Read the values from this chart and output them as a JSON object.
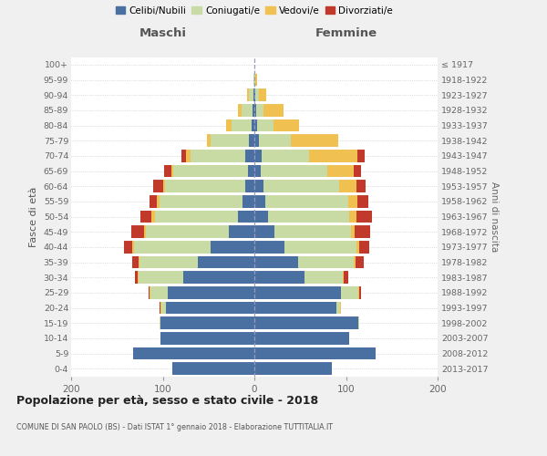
{
  "age_groups": [
    "0-4",
    "5-9",
    "10-14",
    "15-19",
    "20-24",
    "25-29",
    "30-34",
    "35-39",
    "40-44",
    "45-49",
    "50-54",
    "55-59",
    "60-64",
    "65-69",
    "70-74",
    "75-79",
    "80-84",
    "85-89",
    "90-94",
    "95-99",
    "100+"
  ],
  "birth_years": [
    "2013-2017",
    "2008-2012",
    "2003-2007",
    "1998-2002",
    "1993-1997",
    "1988-1992",
    "1983-1987",
    "1978-1982",
    "1973-1977",
    "1968-1972",
    "1963-1967",
    "1958-1962",
    "1953-1957",
    "1948-1952",
    "1943-1947",
    "1938-1942",
    "1933-1937",
    "1928-1932",
    "1923-1927",
    "1918-1922",
    "≤ 1917"
  ],
  "maschi": {
    "celibi": [
      90,
      132,
      102,
      102,
      97,
      95,
      78,
      62,
      48,
      28,
      18,
      13,
      10,
      7,
      10,
      6,
      3,
      2,
      1,
      0,
      0
    ],
    "coniugati": [
      0,
      0,
      0,
      1,
      4,
      18,
      48,
      63,
      83,
      90,
      90,
      90,
      88,
      82,
      60,
      42,
      22,
      12,
      5,
      1,
      0
    ],
    "vedovi": [
      0,
      0,
      0,
      0,
      1,
      1,
      1,
      1,
      2,
      2,
      4,
      3,
      2,
      2,
      5,
      4,
      6,
      4,
      2,
      0,
      0
    ],
    "divorziati": [
      0,
      0,
      0,
      0,
      1,
      1,
      3,
      7,
      9,
      14,
      12,
      8,
      10,
      8,
      5,
      0,
      0,
      0,
      0,
      0,
      0
    ]
  },
  "femmine": {
    "nubili": [
      85,
      132,
      103,
      113,
      90,
      95,
      55,
      48,
      33,
      22,
      15,
      12,
      10,
      7,
      8,
      5,
      3,
      2,
      1,
      0,
      0
    ],
    "coniugate": [
      0,
      0,
      0,
      1,
      4,
      18,
      42,
      60,
      78,
      83,
      88,
      90,
      83,
      73,
      52,
      35,
      18,
      8,
      4,
      1,
      0
    ],
    "vedove": [
      0,
      0,
      0,
      0,
      1,
      1,
      1,
      2,
      3,
      4,
      8,
      10,
      18,
      28,
      52,
      52,
      28,
      22,
      8,
      2,
      0
    ],
    "divorziate": [
      0,
      0,
      0,
      0,
      0,
      2,
      4,
      9,
      11,
      17,
      17,
      12,
      10,
      8,
      8,
      0,
      0,
      0,
      0,
      0,
      0
    ]
  },
  "colors": {
    "celibi": "#4a6fa1",
    "coniugati": "#c8dba5",
    "vedovi": "#f0c050",
    "divorziati": "#c0392b"
  },
  "xlim": 200,
  "title": "Popolazione per età, sesso e stato civile - 2018",
  "subtitle": "COMUNE DI SAN PAOLO (BS) - Dati ISTAT 1° gennaio 2018 - Elaborazione TUTTITALIA.IT",
  "ylabel": "Fasce di età",
  "ylabel2": "Anni di nascita",
  "label_maschi": "Maschi",
  "label_femmine": "Femmine",
  "legend_labels": [
    "Celibi/Nubili",
    "Coniugati/e",
    "Vedovi/e",
    "Divorziati/e"
  ],
  "bg_color": "#f0f0f0",
  "plot_bg": "#ffffff"
}
